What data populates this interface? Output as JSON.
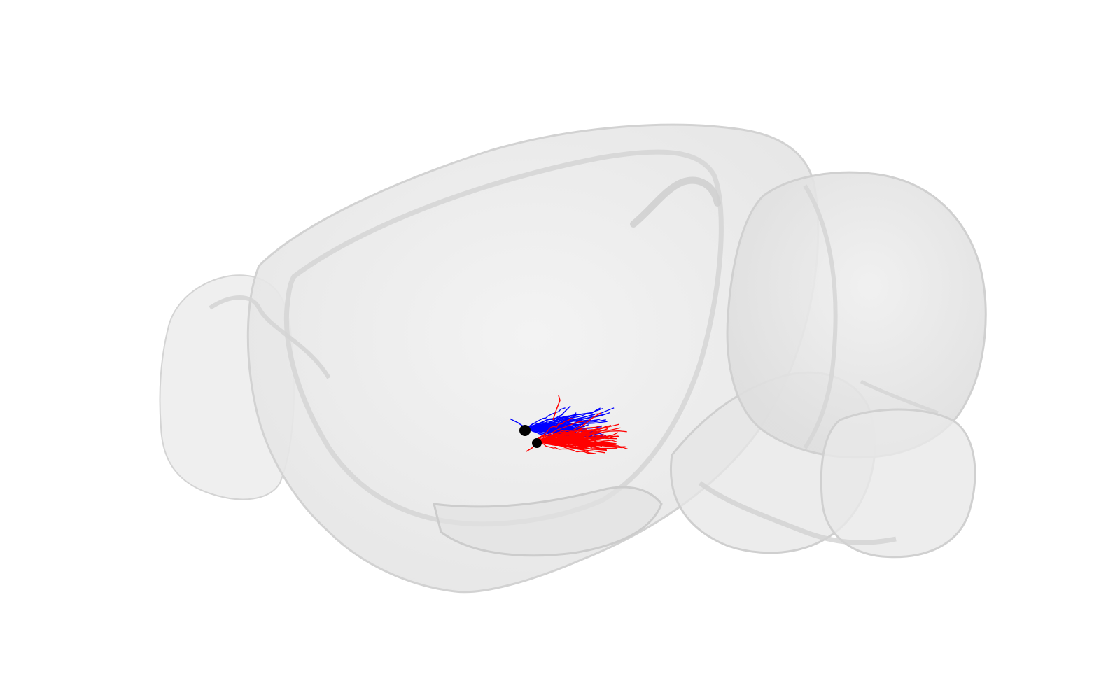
{
  "scene": {
    "background_color": "#ffffff",
    "brain_fill": "#e9e9e9",
    "brain_edge": "#cfcfcf",
    "neuron_colors": [
      "#0000ff",
      "#ff0000"
    ],
    "soma_color": "#000000",
    "neurons": [
      {
        "color": "#0000ff"
      },
      {
        "color": "#ff0000"
      }
    ]
  }
}
